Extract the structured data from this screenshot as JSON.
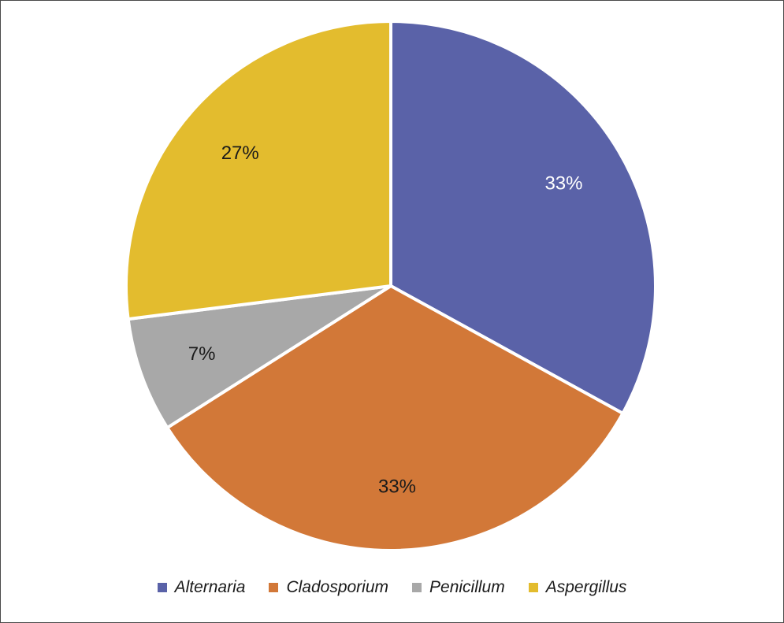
{
  "chart_data": {
    "type": "pie",
    "start_angle_deg": 0,
    "direction": "clockwise",
    "slices": [
      {
        "label": "Alternaria",
        "value": 33,
        "display": "33%",
        "color": "#5a62a8",
        "label_color": "#ffffff"
      },
      {
        "label": "Cladosporium",
        "value": 33,
        "display": "33%",
        "color": "#d27838",
        "label_color": "#1a1a1a"
      },
      {
        "label": "Penicillum",
        "value": 7,
        "display": "7%",
        "color": "#a8a8a8",
        "label_color": "#1a1a1a"
      },
      {
        "label": "Aspergillus",
        "value": 27,
        "display": "27%",
        "color": "#e3bc2e",
        "label_color": "#1a1a1a"
      }
    ],
    "legend_position": "bottom"
  }
}
